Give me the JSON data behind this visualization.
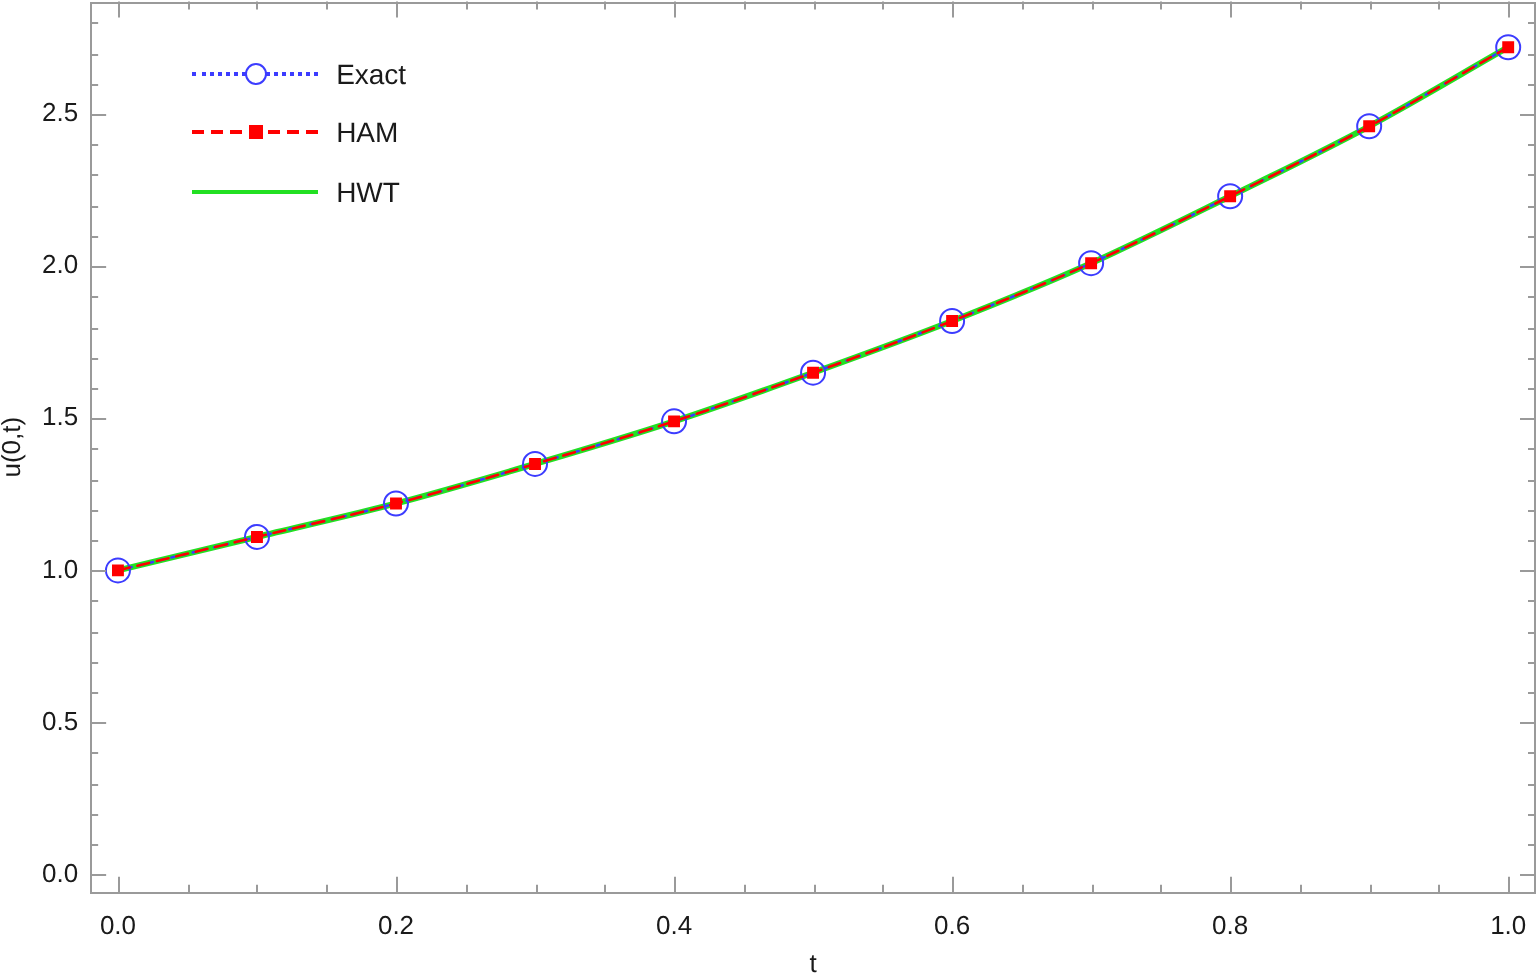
{
  "chart_data": {
    "type": "line",
    "xlabel": "t",
    "ylabel": "u(0,t)",
    "x": [
      0,
      0.1,
      0.2,
      0.3,
      0.4,
      0.5,
      0.6,
      0.7,
      0.8,
      0.9,
      1
    ],
    "xlim": [
      -0.02,
      1.02
    ],
    "xticks": [
      {
        "value": 0,
        "label": "0.0"
      },
      {
        "value": 0.05,
        "label": null
      },
      {
        "value": 0.1,
        "label": null
      },
      {
        "value": 0.15,
        "label": null
      },
      {
        "value": 0.2,
        "label": "0.2"
      },
      {
        "value": 0.25,
        "label": null
      },
      {
        "value": 0.3,
        "label": null
      },
      {
        "value": 0.35,
        "label": null
      },
      {
        "value": 0.4,
        "label": "0.4"
      },
      {
        "value": 0.45,
        "label": null
      },
      {
        "value": 0.5,
        "label": null
      },
      {
        "value": 0.55,
        "label": null
      },
      {
        "value": 0.6,
        "label": "0.6"
      },
      {
        "value": 0.65,
        "label": null
      },
      {
        "value": 0.7,
        "label": null
      },
      {
        "value": 0.75,
        "label": null
      },
      {
        "value": 0.8,
        "label": "0.8"
      },
      {
        "value": 0.85,
        "label": null
      },
      {
        "value": 0.9,
        "label": null
      },
      {
        "value": 0.95,
        "label": null
      },
      {
        "value": 1,
        "label": "1.0"
      }
    ],
    "ylim": [
      -0.06,
      2.87
    ],
    "yticks": [
      {
        "value": 0,
        "label": "0.0"
      },
      {
        "value": 0.1,
        "label": null
      },
      {
        "value": 0.2,
        "label": null
      },
      {
        "value": 0.3,
        "label": null
      },
      {
        "value": 0.4,
        "label": null
      },
      0.5,
      {
        "value": 0.6,
        "label": null
      },
      {
        "value": 0.7,
        "label": null
      },
      {
        "value": 0.8,
        "label": null
      },
      {
        "value": 0.9,
        "label": null
      },
      {
        "value": 1,
        "label": "1.0"
      },
      {
        "value": 1.1,
        "label": null
      },
      {
        "value": 1.2,
        "label": null
      },
      {
        "value": 1.3,
        "label": null
      },
      {
        "value": 1.4,
        "label": null
      },
      1.5,
      {
        "value": 1.6,
        "label": null
      },
      {
        "value": 1.7,
        "label": null
      },
      {
        "value": 1.8,
        "label": null
      },
      {
        "value": 1.9,
        "label": null
      },
      {
        "value": 2,
        "label": "2.0"
      },
      {
        "value": 2.1,
        "label": null
      },
      {
        "value": 2.2,
        "label": null
      },
      {
        "value": 2.3,
        "label": null
      },
      {
        "value": 2.4,
        "label": null
      },
      2.5,
      {
        "value": 2.6,
        "label": null
      },
      {
        "value": 2.7,
        "label": null
      },
      {
        "value": 2.8,
        "label": null
      }
    ],
    "grid": false,
    "legend": "top left",
    "series": [
      {
        "name": "Exact",
        "color": "#3c3cff",
        "marker": "circle",
        "line_style": "dotted",
        "values": [
          1.0,
          1.11,
          1.22,
          1.35,
          1.49,
          1.65,
          1.82,
          2.01,
          2.23,
          2.46,
          2.72
        ]
      },
      {
        "name": "HAM",
        "color": "#ff0000",
        "marker": "square",
        "line_style": "dashed",
        "values": [
          1.0,
          1.11,
          1.22,
          1.35,
          1.49,
          1.65,
          1.82,
          2.01,
          2.23,
          2.46,
          2.72
        ]
      },
      {
        "name": "HWT",
        "color": "#22e022",
        "marker": "none",
        "line_style": "solid",
        "values": [
          1.0,
          1.11,
          1.22,
          1.35,
          1.49,
          1.65,
          1.82,
          2.01,
          2.23,
          2.46,
          2.72
        ]
      }
    ]
  }
}
